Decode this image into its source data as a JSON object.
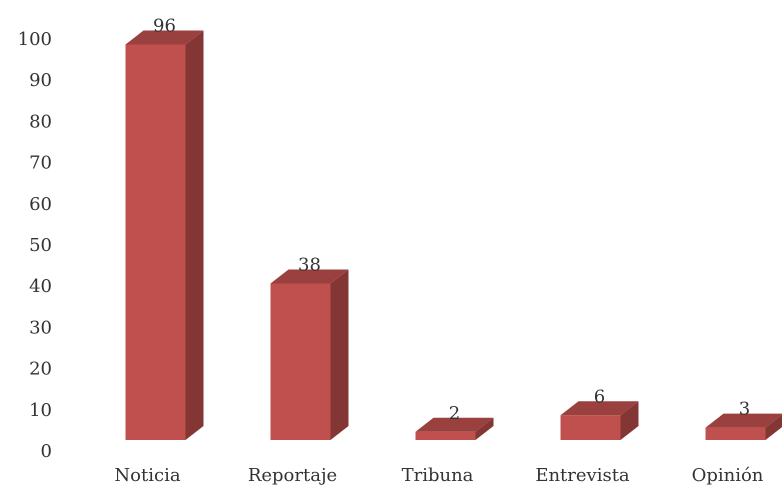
{
  "chart_data": {
    "type": "bar3d",
    "categories": [
      "Noticia",
      "Reportaje",
      "Tribuna",
      "Entrevista",
      "Opinión"
    ],
    "values": [
      96,
      38,
      2,
      6,
      3
    ],
    "color": "#c0504d",
    "ylim": [
      0,
      100
    ],
    "yticks": [
      0,
      10,
      20,
      30,
      40,
      50,
      60,
      70,
      80,
      90,
      100
    ]
  }
}
